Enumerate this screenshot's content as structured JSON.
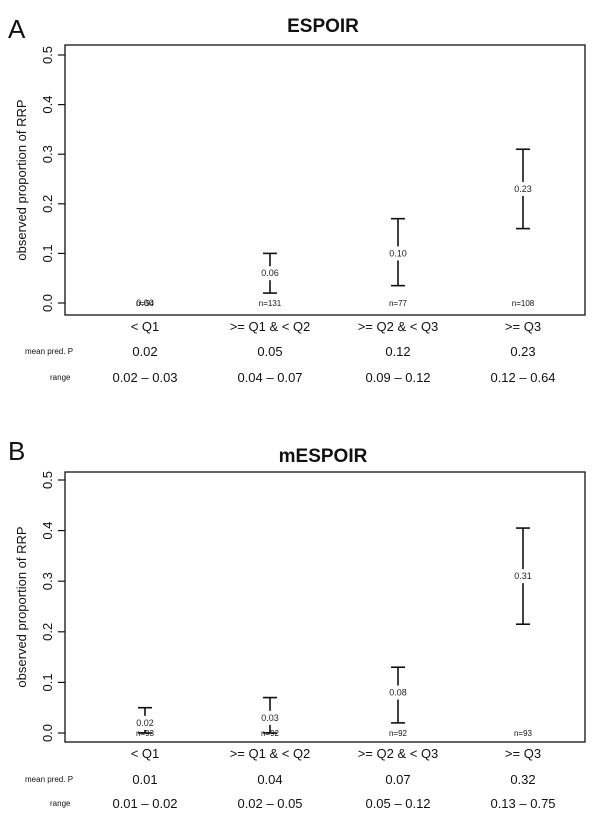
{
  "chart_data": [
    {
      "panel": "A",
      "type": "scatter",
      "title": "ESPOIR",
      "ylabel": "observed proportion of RRP",
      "ylim": [
        0,
        0.5
      ],
      "yticks": [
        "0.0",
        "0.1",
        "0.2",
        "0.3",
        "0.4",
        "0.5"
      ],
      "categories": [
        "< Q1",
        ">= Q1 & < Q2",
        ">= Q2 & < Q3",
        ">= Q3"
      ],
      "values": [
        0.0,
        0.06,
        0.1,
        0.23
      ],
      "value_labels": [
        "0.00",
        "0.06",
        "0.10",
        "0.23"
      ],
      "ci_low": [
        0.0,
        0.02,
        0.035,
        0.15
      ],
      "ci_high": [
        0.0,
        0.1,
        0.17,
        0.31
      ],
      "n_labels": [
        "n=54",
        "n=131",
        "n=77",
        "n=108"
      ],
      "row_labels": {
        "mean": "mean pred. P",
        "range": "range"
      },
      "mean_pred": [
        "0.02",
        "0.05",
        "0.12",
        "0.23"
      ],
      "range": [
        "0.02 – 0.03",
        "0.04 – 0.07",
        "0.09 – 0.12",
        "0.12 – 0.64"
      ],
      "grid": false
    },
    {
      "panel": "B",
      "type": "scatter",
      "title": "mESPOIR",
      "ylabel": "observed proportion of RRP",
      "ylim": [
        0,
        0.5
      ],
      "yticks": [
        "0.0",
        "0.1",
        "0.2",
        "0.3",
        "0.4",
        "0.5"
      ],
      "categories": [
        "< Q1",
        ">= Q1 & < Q2",
        ">= Q2 & < Q3",
        ">= Q3"
      ],
      "values": [
        0.02,
        0.03,
        0.08,
        0.31
      ],
      "value_labels": [
        "0.02",
        "0.03",
        "0.08",
        "0.31"
      ],
      "ci_low": [
        0.0,
        0.0,
        0.02,
        0.215
      ],
      "ci_high": [
        0.05,
        0.07,
        0.13,
        0.405
      ],
      "n_labels": [
        "n=93",
        "n=92",
        "n=92",
        "n=93"
      ],
      "row_labels": {
        "mean": "mean pred. P",
        "range": "range"
      },
      "mean_pred": [
        "0.01",
        "0.04",
        "0.07",
        "0.32"
      ],
      "range": [
        "0.01 – 0.02",
        "0.02 – 0.05",
        "0.05 – 0.12",
        "0.13 – 0.75"
      ],
      "grid": false
    }
  ]
}
